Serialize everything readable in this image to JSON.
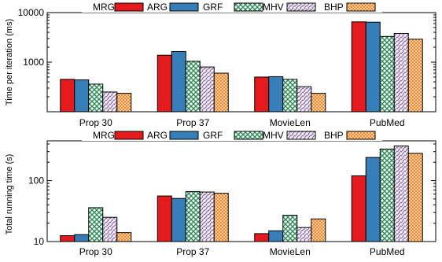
{
  "colors": {
    "ARG": "#e41a1c",
    "GRF": "#377eb8",
    "MHV": "#2e8b57",
    "BHP": "#8e6aa8",
    "MRG": "#f0892b"
  },
  "chart_data": [
    {
      "type": "bar",
      "scale": "log",
      "ylabel": "Time per iteration (ms)",
      "ylim": [
        100,
        10000
      ],
      "yticks": [
        {
          "value": 1000,
          "label": "1000"
        },
        {
          "value": 10000,
          "label": "10000"
        }
      ],
      "legend_placement": "top",
      "legend": [
        {
          "label": "MRG",
          "pattern": "ARG"
        },
        {
          "label": "ARG",
          "pattern": "GRF"
        },
        {
          "label": "GRF",
          "pattern": "MHV"
        },
        {
          "label": "MHV",
          "pattern": "BHP"
        },
        {
          "label": "BHP",
          "pattern": "MRG"
        }
      ],
      "categories": [
        "Prop 30",
        "Prop 37",
        "MovieLen",
        "PubMed"
      ],
      "series": [
        {
          "pattern": "ARG",
          "values": [
            450,
            1380,
            500,
            6500
          ]
        },
        {
          "pattern": "GRF",
          "values": [
            440,
            1640,
            510,
            6400
          ]
        },
        {
          "pattern": "MHV",
          "values": [
            360,
            1040,
            450,
            3300
          ]
        },
        {
          "pattern": "BHP",
          "values": [
            250,
            800,
            320,
            3800
          ]
        },
        {
          "pattern": "MRG",
          "values": [
            235,
            600,
            235,
            2900
          ]
        }
      ]
    },
    {
      "type": "bar",
      "scale": "log",
      "ylabel": "Total running time (s)",
      "ylim": [
        10,
        450
      ],
      "yticks": [
        {
          "value": 10,
          "label": "10"
        },
        {
          "value": 100,
          "label": "100"
        }
      ],
      "legend_placement": "top",
      "legend": [
        {
          "label": "MRG",
          "pattern": "ARG"
        },
        {
          "label": "ARG",
          "pattern": "GRF"
        },
        {
          "label": "GRF",
          "pattern": "MHV"
        },
        {
          "label": "MHV",
          "pattern": "BHP"
        },
        {
          "label": "BHP",
          "pattern": "MRG"
        }
      ],
      "categories": [
        "Prop 30",
        "Prop 37",
        "MovieLen",
        "PubMed"
      ],
      "series": [
        {
          "pattern": "ARG",
          "values": [
            12.5,
            56,
            13.5,
            120
          ]
        },
        {
          "pattern": "GRF",
          "values": [
            13,
            51,
            15,
            240
          ]
        },
        {
          "pattern": "MHV",
          "values": [
            36,
            66,
            27,
            330
          ]
        },
        {
          "pattern": "BHP",
          "values": [
            25,
            65,
            17,
            370
          ]
        },
        {
          "pattern": "MRG",
          "values": [
            14,
            62,
            23.5,
            280
          ]
        }
      ]
    }
  ]
}
